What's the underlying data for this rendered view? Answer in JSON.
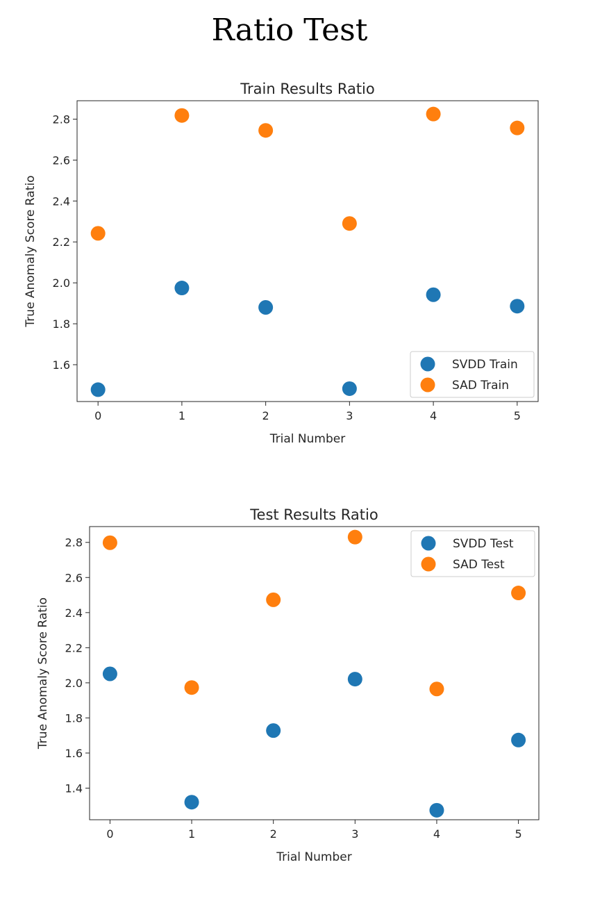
{
  "page": {
    "title": "Ratio Test"
  },
  "colors": {
    "series_a": "#1f77b4",
    "series_b": "#ff7f0e",
    "axis": "#262626",
    "legend_border": "#cccccc"
  },
  "chart_data": [
    {
      "type": "scatter",
      "title": "Train Results Ratio",
      "xlabel": "Trial Number",
      "ylabel": "True Anomaly Score Ratio",
      "xlim": [
        -0.25,
        5.25
      ],
      "ylim": [
        1.42,
        2.89
      ],
      "xticks": [
        0,
        1,
        2,
        3,
        4,
        5
      ],
      "yticks": [
        1.6,
        1.8,
        2.0,
        2.2,
        2.4,
        2.6,
        2.8
      ],
      "ytick_labels": [
        "1.6",
        "1.8",
        "2.0",
        "2.2",
        "2.4",
        "2.6",
        "2.8"
      ],
      "legend_position": "lower-right",
      "grid": false,
      "x": [
        0,
        1,
        2,
        3,
        4,
        5
      ],
      "series": [
        {
          "name": "SVDD Train",
          "color": "#1f77b4",
          "values": [
            1.478,
            1.975,
            1.88,
            1.483,
            1.942,
            1.886
          ]
        },
        {
          "name": "SAD Train",
          "color": "#ff7f0e",
          "values": [
            2.242,
            2.818,
            2.745,
            2.29,
            2.825,
            2.757
          ]
        }
      ]
    },
    {
      "type": "scatter",
      "title": "Test Results Ratio",
      "xlabel": "Trial Number",
      "ylabel": "True Anomaly Score Ratio",
      "xlim": [
        -0.25,
        5.25
      ],
      "ylim": [
        1.22,
        2.89
      ],
      "xticks": [
        0,
        1,
        2,
        3,
        4,
        5
      ],
      "yticks": [
        1.4,
        1.6,
        1.8,
        2.0,
        2.2,
        2.4,
        2.6,
        2.8
      ],
      "ytick_labels": [
        "1.4",
        "1.6",
        "1.8",
        "2.0",
        "2.2",
        "2.4",
        "2.6",
        "2.8"
      ],
      "legend_position": "upper-right",
      "grid": false,
      "x": [
        0,
        1,
        2,
        3,
        4,
        5
      ],
      "series": [
        {
          "name": "SVDD Test",
          "color": "#1f77b4",
          "values": [
            2.051,
            1.32,
            1.728,
            2.021,
            1.274,
            1.674
          ]
        },
        {
          "name": "SAD Test",
          "color": "#ff7f0e",
          "values": [
            2.798,
            1.973,
            2.473,
            2.83,
            1.965,
            2.512
          ]
        }
      ]
    }
  ]
}
